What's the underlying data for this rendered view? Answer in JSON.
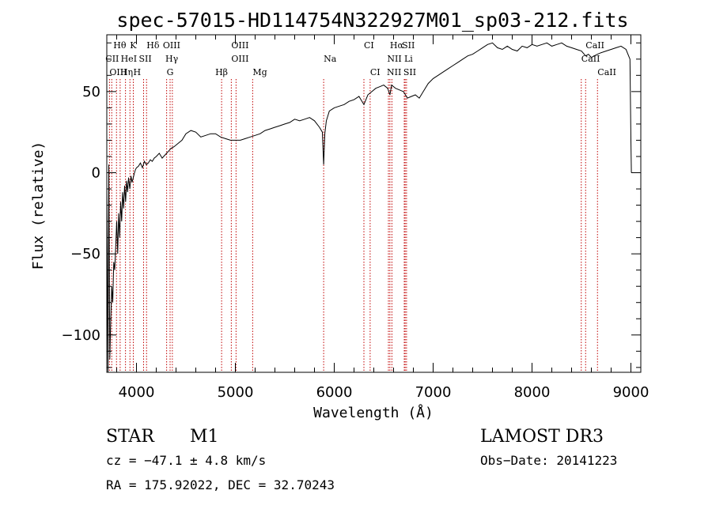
{
  "chart_data": {
    "type": "line",
    "title": "spec-57015-HD114754N322927M01_sp03-212.fits",
    "xlabel": "Wavelength (Å)",
    "ylabel": "Flux (relative)",
    "xlim": [
      3700,
      9100
    ],
    "ylim": [
      -123,
      85
    ],
    "xticks": [
      4000,
      5000,
      6000,
      7000,
      8000,
      9000
    ],
    "xtick_labels": [
      "4000",
      "5000",
      "6000",
      "7000",
      "8000",
      "9000"
    ],
    "yticks": [
      -100,
      -50,
      0,
      50
    ],
    "ytick_labels": [
      "−100",
      "−50",
      "0",
      "50"
    ],
    "grid": false,
    "series": [
      {
        "x": [
          3700,
          3712,
          3720,
          3730,
          3740,
          3750,
          3760,
          3770,
          3780,
          3790,
          3800,
          3810,
          3820,
          3830,
          3840,
          3850,
          3860,
          3870,
          3880,
          3890,
          3900,
          3910,
          3920,
          3933,
          3945,
          3955,
          3968,
          3980,
          3990,
          4000,
          4020,
          4040,
          4060,
          4080,
          4100,
          4120,
          4140,
          4160,
          4180,
          4200,
          4230,
          4260,
          4290,
          4320,
          4350,
          4380,
          4420,
          4460,
          4500,
          4550,
          4600,
          4650,
          4700,
          4750,
          4800,
          4850,
          4900,
          4950,
          5000,
          5050,
          5100,
          5150,
          5200,
          5250,
          5300,
          5350,
          5400,
          5450,
          5500,
          5550,
          5600,
          5650,
          5700,
          5750,
          5800,
          5850,
          5880,
          5893,
          5905,
          5920,
          5950,
          6000,
          6050,
          6100,
          6150,
          6200,
          6250,
          6300,
          6340,
          6380,
          6420,
          6460,
          6500,
          6540,
          6563,
          6580,
          6620,
          6660,
          6700,
          6740,
          6780,
          6820,
          6860,
          6900,
          6950,
          7000,
          7050,
          7100,
          7150,
          7200,
          7250,
          7300,
          7350,
          7400,
          7450,
          7500,
          7550,
          7600,
          7650,
          7700,
          7750,
          7800,
          7850,
          7900,
          7950,
          8000,
          8050,
          8100,
          8150,
          8200,
          8250,
          8300,
          8350,
          8400,
          8450,
          8500,
          8542,
          8570,
          8600,
          8630,
          8662,
          8700,
          8750,
          8800,
          8850,
          8900,
          8950,
          8990,
          9000,
          9005
        ],
        "y": [
          -10,
          -123,
          5,
          -115,
          -90,
          -70,
          -80,
          -55,
          -60,
          -45,
          -30,
          -50,
          -25,
          -40,
          -18,
          -30,
          -12,
          -22,
          -8,
          -18,
          -5,
          -12,
          -3,
          -10,
          -2,
          -6,
          -3,
          0,
          2,
          3,
          4,
          6,
          3,
          7,
          5,
          6,
          8,
          7,
          9,
          10,
          12,
          9,
          11,
          13,
          15,
          16,
          18,
          20,
          24,
          26,
          25,
          22,
          23,
          24,
          24,
          22,
          21,
          20,
          20,
          20,
          21,
          22,
          23,
          24,
          26,
          27,
          28,
          29,
          30,
          31,
          33,
          32,
          33,
          34,
          32,
          28,
          25,
          5,
          24,
          32,
          38,
          40,
          41,
          42,
          44,
          45,
          47,
          42,
          48,
          50,
          52,
          53,
          54,
          52,
          48,
          54,
          52,
          51,
          50,
          46,
          47,
          48,
          46,
          50,
          55,
          58,
          60,
          62,
          64,
          66,
          68,
          70,
          72,
          73,
          75,
          77,
          79,
          80,
          77,
          76,
          78,
          76,
          75,
          78,
          77,
          79,
          78,
          79,
          80,
          78,
          79,
          80,
          78,
          77,
          76,
          75,
          72,
          73,
          71,
          72,
          73,
          74,
          75,
          76,
          77,
          78,
          76,
          70,
          20,
          0
        ]
      }
    ],
    "line_labels": [
      {
        "label": "Hθ",
        "x": 3798,
        "row": 1,
        "dx": -4
      },
      {
        "label": "K",
        "x": 3934,
        "row": 1,
        "dx": 0
      },
      {
        "label": "Hδ",
        "x": 4102,
        "row": 1,
        "dx": 0
      },
      {
        "label": "OIII",
        "x": 4363,
        "row": 1,
        "dx": -12
      },
      {
        "label": "OIII",
        "x": 4959,
        "row": 1,
        "dx": 0
      },
      {
        "label": "CI",
        "x": 6300,
        "row": 1,
        "dx": 0
      },
      {
        "label": "Hα",
        "x": 6563,
        "row": 1,
        "dx": 0
      },
      {
        "label": "SII",
        "x": 6717,
        "row": 1,
        "dx": -4
      },
      {
        "label": "CaII",
        "x": 8542,
        "row": 1,
        "dx": 0
      },
      {
        "label": "CII",
        "x": 3750,
        "row": 2,
        "dx": -8
      },
      {
        "label": "HeI",
        "x": 3889,
        "row": 2,
        "dx": -6
      },
      {
        "label": "SII",
        "x": 4072,
        "row": 2,
        "dx": -6
      },
      {
        "label": "Hγ",
        "x": 4340,
        "row": 2,
        "dx": -6
      },
      {
        "label": "OIII",
        "x": 5007,
        "row": 2,
        "dx": -6
      },
      {
        "label": "Na",
        "x": 5893,
        "row": 2,
        "dx": 0
      },
      {
        "label": "NII",
        "x": 6583,
        "row": 2,
        "dx": -6
      },
      {
        "label": "Li",
        "x": 6708,
        "row": 2,
        "dx": 0
      },
      {
        "label": "CaII",
        "x": 8498,
        "row": 2,
        "dx": 0
      },
      {
        "label": "OIII",
        "x": 3727,
        "row": 3,
        "dx": 0
      },
      {
        "label": "Hη",
        "x": 3835,
        "row": 3,
        "dx": 0
      },
      {
        "label": "H",
        "x": 3968,
        "row": 3,
        "dx": 0
      },
      {
        "label": "G",
        "x": 4305,
        "row": 3,
        "dx": 0
      },
      {
        "label": "Hβ",
        "x": 4861,
        "row": 3,
        "dx": -8
      },
      {
        "label": "Mg",
        "x": 5175,
        "row": 3,
        "dx": 0
      },
      {
        "label": "CI",
        "x": 6363,
        "row": 3,
        "dx": 0
      },
      {
        "label": "NII",
        "x": 6548,
        "row": 3,
        "dx": -2
      },
      {
        "label": "SII",
        "x": 6731,
        "row": 3,
        "dx": -4
      },
      {
        "label": "CaII",
        "x": 8662,
        "row": 3,
        "dx": 0
      }
    ],
    "line_positions": [
      3727,
      3750,
      3798,
      3835,
      3889,
      3934,
      3968,
      4072,
      4102,
      4305,
      4340,
      4363,
      4861,
      4959,
      5007,
      5175,
      5893,
      6300,
      6363,
      6548,
      6563,
      6583,
      6708,
      6717,
      6731,
      8498,
      8542,
      8662
    ],
    "colors": {
      "spectrum": "#000000",
      "lines": "#c00000",
      "axes": "#000000"
    }
  },
  "info": {
    "object_class": "STAR",
    "subclass": "M1",
    "survey": "LAMOST DR3",
    "cz": "cz = −47.1 ± 4.8 km/s",
    "obs_date": "Obs−Date: 20141223",
    "coords": "RA = 175.92022, DEC =  32.70243"
  }
}
